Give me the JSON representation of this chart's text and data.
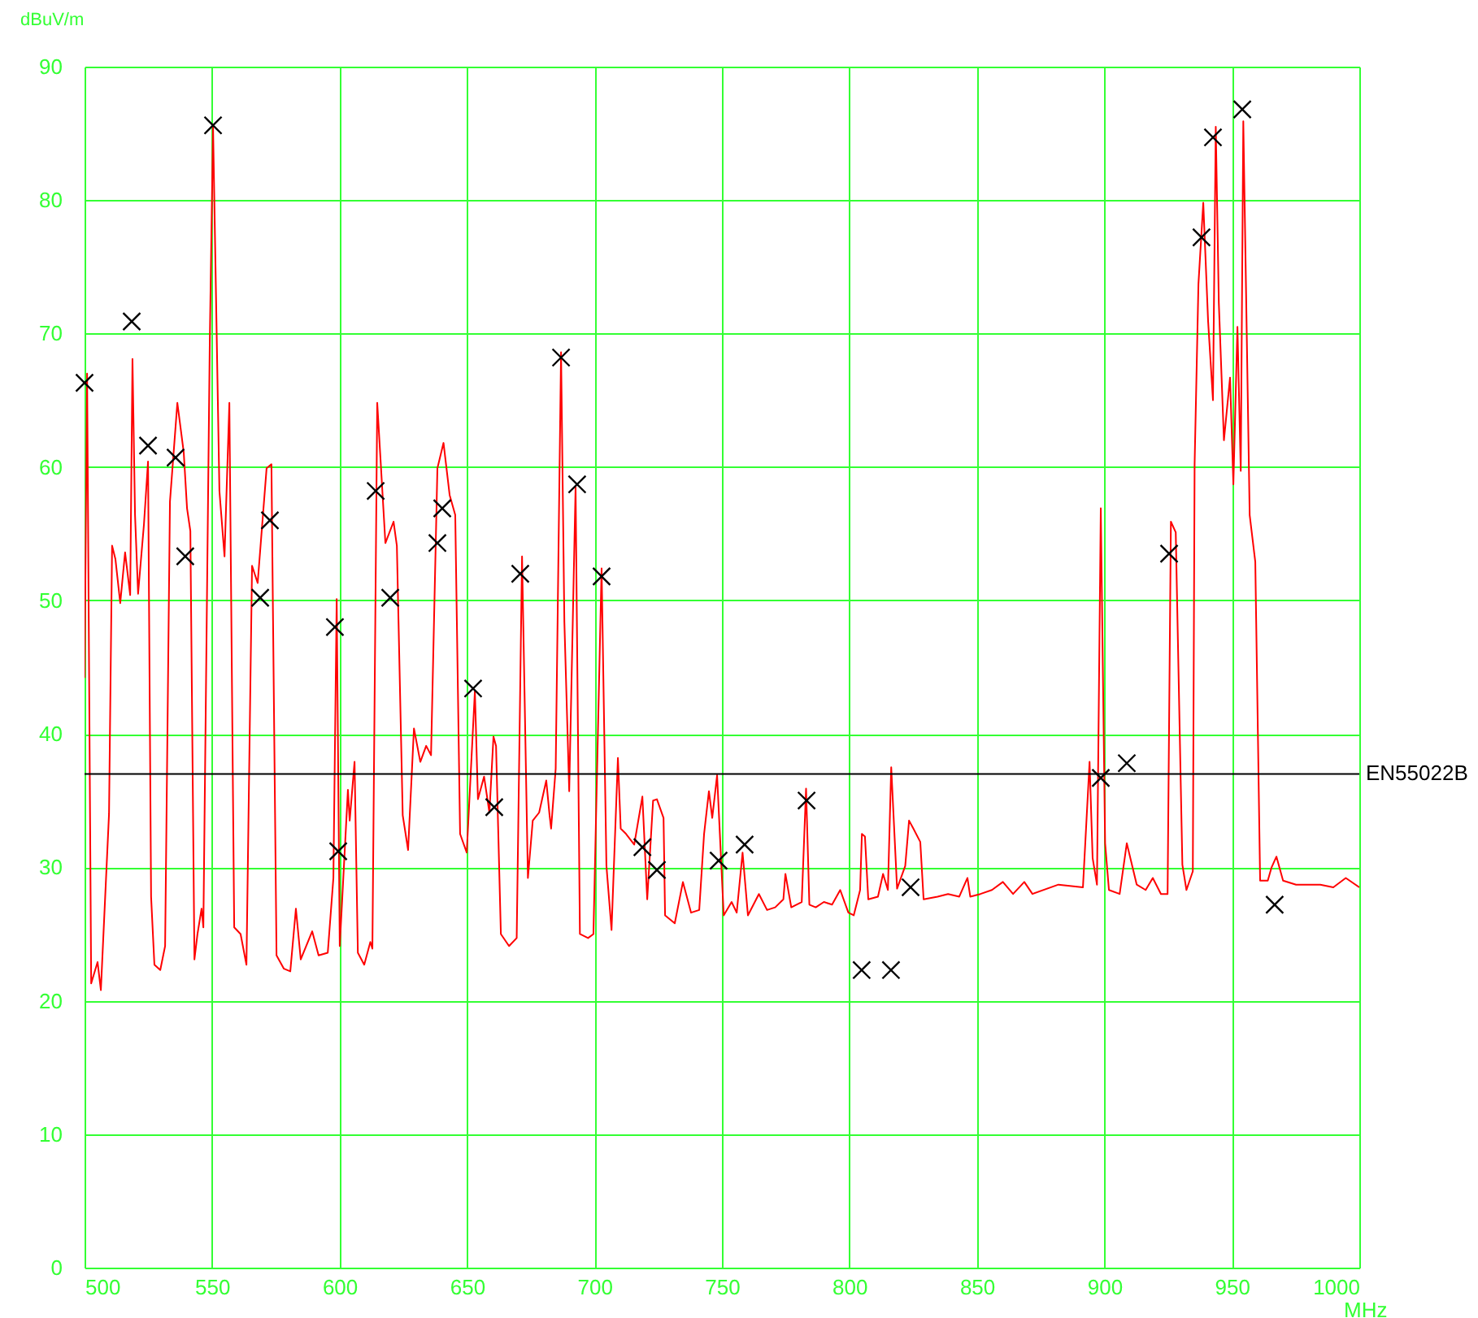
{
  "chart_data": {
    "type": "line",
    "xlabel": "MHz",
    "ylabel": "dBuV/m",
    "xlim": [
      500,
      1000
    ],
    "ylim": [
      0,
      90
    ],
    "xticks": [
      500,
      550,
      600,
      650,
      700,
      750,
      800,
      850,
      900,
      950,
      1000
    ],
    "yticks": [
      0,
      10,
      20,
      30,
      40,
      50,
      60,
      70,
      80,
      90
    ],
    "grid": true,
    "series": [
      {
        "color": "#ff0000",
        "x": [
          500,
          501.0,
          502.6,
          505.1,
          506.4,
          509.6,
          510.8,
          512.1,
          514.0,
          515.9,
          517.9,
          518.8,
          519.8,
          521.0,
          523.3,
          524.9,
          526.1,
          527.4,
          529.7,
          531.6,
          533.5,
          536.4,
          538.9,
          540.2,
          541.5,
          543.1,
          544.3,
          545.9,
          546.6,
          549.1,
          550.4,
          552.9,
          554.9,
          556.8,
          558.7,
          561.2,
          563.5,
          565.7,
          567.9,
          571.4,
          573.3,
          575.3,
          578.2,
          580.7,
          582.9,
          584.8,
          589.3,
          591.8,
          595.4,
          597.6,
          598.9,
          600.1,
          603.3,
          604.0,
          605.9,
          607.2,
          609.7,
          612.1,
          612.9,
          614.8,
          618.0,
          621.2,
          622.5,
          624.8,
          626.9,
          629.2,
          631.7,
          634.0,
          635.9,
          638.4,
          640.8,
          643.2,
          645.4,
          647.3,
          649.9,
          653.1,
          654.3,
          656.7,
          658.8,
          660.4,
          661.4,
          663.3,
          666.5,
          669.5,
          671.6,
          673.9,
          675.8,
          678.3,
          681.1,
          682.4,
          683.0,
          684.8,
          686.9,
          688.2,
          690.1,
          692.6,
          694.3,
          697.5,
          699.6,
          702.8,
          704.7,
          706.7,
          709.2,
          710.3,
          712.4,
          715.6,
          718.8,
          720.7,
          723.0,
          724.5,
          727.1,
          727.7,
          731.5,
          734.7,
          737.9,
          741.1,
          743.0,
          744.9,
          746.2,
          748.1,
          750.7,
          753.8,
          755.8,
          758.1,
          760.2,
          764.5,
          767.7,
          770.9,
          774.1,
          774.9,
          777.2,
          781.3,
          783.0,
          784.3,
          786.8,
          790.0,
          793.2,
          796.4,
          799.6,
          801.7,
          804.2,
          804.9,
          806.1,
          807.4,
          811.2,
          813.2,
          815.1,
          816.4,
          818.7,
          821.9,
          823.4,
          825.1,
          827.8,
          829.1,
          834.6,
          838.7,
          843.1,
          846.3,
          847.4,
          851.4,
          855.9,
          860.2,
          864.2,
          868.6,
          871.8,
          882.0,
          891.6,
          894.2,
          895.4,
          897.1,
          898.6,
          900.3,
          901.8,
          906.0,
          908.8,
          912.7,
          916.2,
          919.0,
          922.2,
          924.8,
          926.1,
          928.0,
          930.6,
          932.2,
          934.7,
          935.4,
          936.9,
          938.8,
          940.7,
          942.6,
          943.7,
          944.9,
          946.9,
          949.3,
          950.6,
          952.2,
          953.5,
          954.5,
          957.0,
          959.2,
          961.1,
          964.1,
          965.6,
          967.5,
          970.1,
          975.2,
          980.0,
          984.7,
          989.8,
          994.7,
          1000
        ],
        "values": [
          44.2,
          67.0,
          21.3,
          22.9,
          20.8,
          34.0,
          54.1,
          53.1,
          49.8,
          53.6,
          50.4,
          68.1,
          56.4,
          50.5,
          55.7,
          60.4,
          27.8,
          22.7,
          22.3,
          24.1,
          57.4,
          64.8,
          61.1,
          56.9,
          55.2,
          23.1,
          25.0,
          26.9,
          25.5,
          69.1,
          85.5,
          58.2,
          53.3,
          64.8,
          25.5,
          25.0,
          22.7,
          52.6,
          51.3,
          59.9,
          60.2,
          23.4,
          22.4,
          22.2,
          26.9,
          23.1,
          25.2,
          23.4,
          23.6,
          29.2,
          50.1,
          24.1,
          35.8,
          33.5,
          37.9,
          23.6,
          22.7,
          24.4,
          23.9,
          64.8,
          54.3,
          55.9,
          54.1,
          33.9,
          31.3,
          40.4,
          37.9,
          39.1,
          38.4,
          59.9,
          61.8,
          57.9,
          56.4,
          32.5,
          31.1,
          43.2,
          35.1,
          36.8,
          34.1,
          39.8,
          39.1,
          25.0,
          24.1,
          24.7,
          53.3,
          29.2,
          33.5,
          34.1,
          36.5,
          33.9,
          32.9,
          37.4,
          68.6,
          48.4,
          35.7,
          58.5,
          25.0,
          24.7,
          25.0,
          52.4,
          30.1,
          25.3,
          38.2,
          32.9,
          32.5,
          31.7,
          35.3,
          27.6,
          35.0,
          35.1,
          33.7,
          26.4,
          25.8,
          28.9,
          26.6,
          26.8,
          32.5,
          35.7,
          33.7,
          36.9,
          26.4,
          27.4,
          26.6,
          31.1,
          26.4,
          28.0,
          26.8,
          27.0,
          27.6,
          29.5,
          27.0,
          27.4,
          35.9,
          27.2,
          27.0,
          27.4,
          27.2,
          28.3,
          26.6,
          26.4,
          28.3,
          32.5,
          32.3,
          27.6,
          27.8,
          29.5,
          28.3,
          37.5,
          28.4,
          30.1,
          33.5,
          32.9,
          31.9,
          27.6,
          27.8,
          28.0,
          27.8,
          29.2,
          27.8,
          28.0,
          28.3,
          28.9,
          28.0,
          28.9,
          28.0,
          28.7,
          28.5,
          37.9,
          30.7,
          28.7,
          56.9,
          31.8,
          28.3,
          28.0,
          31.8,
          28.7,
          28.3,
          29.2,
          28.0,
          28.0,
          55.9,
          55.1,
          30.2,
          28.3,
          29.7,
          60.2,
          73.7,
          79.8,
          70.9,
          65.0,
          85.5,
          72.3,
          62.0,
          66.7,
          58.7,
          70.5,
          59.7,
          85.9,
          56.4,
          52.9,
          29.0,
          29.0,
          30.0,
          30.8,
          29.0,
          28.7,
          28.7,
          28.7,
          28.5,
          29.2,
          28.5
        ]
      },
      {
        "type": "scatter",
        "color": "#000000",
        "marker": "cross",
        "x": [
          500,
          518.5,
          524.9,
          535.7,
          539.5,
          550.4,
          568.9,
          572.7,
          598.2,
          599.5,
          614.2,
          619.9,
          638.4,
          640.3,
          652.4,
          660.7,
          670.9,
          686.9,
          693.2,
          702.8,
          718.8,
          724.5,
          748.7,
          758.9,
          783.2,
          804.8,
          816.3,
          824.0,
          898.6,
          908.8,
          925.4,
          938.1,
          942.6,
          954.1,
          966.8
        ],
        "values": [
          66.3,
          70.9,
          61.6,
          60.7,
          53.3,
          85.6,
          50.2,
          56.0,
          48.0,
          31.2,
          58.2,
          50.2,
          54.3,
          56.9,
          43.4,
          34.5,
          52.0,
          68.2,
          58.7,
          51.8,
          31.5,
          29.8,
          30.5,
          31.7,
          35.0,
          22.3,
          22.3,
          28.5,
          36.7,
          37.8,
          53.5,
          77.2,
          84.7,
          86.8,
          27.2
        ]
      }
    ],
    "ref_lines": [
      {
        "axis": "y",
        "value": 37,
        "label": "EN55022B",
        "color": "#000000"
      }
    ]
  }
}
